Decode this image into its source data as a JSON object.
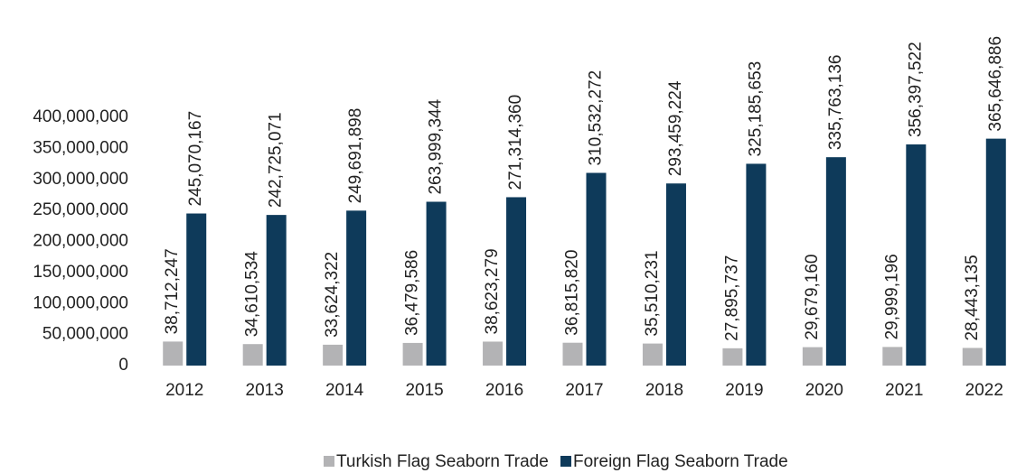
{
  "chart_data": {
    "type": "bar",
    "categories": [
      "2012",
      "2013",
      "2014",
      "2015",
      "2016",
      "2017",
      "2018",
      "2019",
      "2020",
      "2021",
      "2022"
    ],
    "series": [
      {
        "name": "Turkish Flag Seaborn Trade",
        "color": "#b3b3b5",
        "values": [
          38712247,
          34610534,
          33624322,
          36479586,
          38623279,
          36815820,
          35510231,
          27895737,
          29679160,
          29999196,
          28443135
        ],
        "value_labels": [
          "38,712,247",
          "34,610,534",
          "33,624,322",
          "36,479,586",
          "38,623,279",
          "36,815,820",
          "35,510,231",
          "27,895,737",
          "29,679,160",
          "29,999,196",
          "28,443,135"
        ]
      },
      {
        "name": "Foreign Flag Seaborn Trade",
        "color": "#0e3a5a",
        "values": [
          245070167,
          242725071,
          249691898,
          263999344,
          271314360,
          310532272,
          293459224,
          325185653,
          335763136,
          356397522,
          365646886
        ],
        "value_labels": [
          "245,070,167",
          "242,725,071",
          "249,691,898",
          "263,999,344",
          "271,314,360",
          "310,532,272",
          "293,459,224",
          "325,185,653",
          "335,763,136",
          "356,397,522",
          "365,646,886"
        ]
      }
    ],
    "ylim": [
      0,
      400000000
    ],
    "yticks": [
      0,
      {
        "value": 50000000,
        "label": "50,000,000"
      },
      {
        "value": 100000000,
        "label": "100,000,000"
      },
      {
        "value": 150000000,
        "label": "150,000,000"
      },
      {
        "value": 200000000,
        "label": "200,000,000"
      },
      {
        "value": 250000000,
        "label": "250,000,000"
      },
      {
        "value": 300000000,
        "label": "300,000,000"
      },
      {
        "value": 350000000,
        "label": "350,000,000"
      },
      {
        "value": 400000000,
        "label": "400,000,000"
      }
    ],
    "grid": false,
    "legend": "bottom"
  }
}
